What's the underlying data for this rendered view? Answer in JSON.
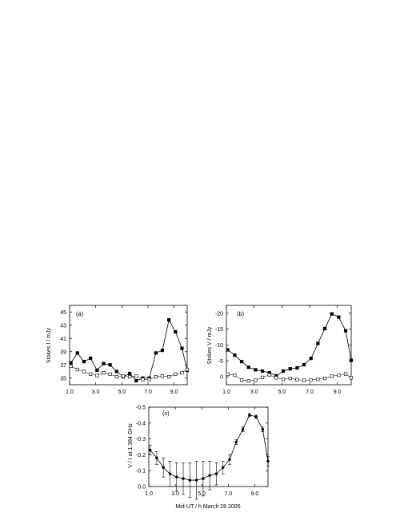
{
  "figure": {
    "bottom_caption": "Mid-UT  / h   March 28   2005"
  },
  "chart_data": [
    {
      "id": "a",
      "type": "line",
      "panel_label": "(a)",
      "ylabel": "Stokes I / mJy",
      "xlabel": "",
      "xlim": [
        1.0,
        10.0
      ],
      "ylim": [
        34,
        46
      ],
      "xticks": [
        "1.0",
        "3.0",
        "5.0",
        "7.0",
        "9.0"
      ],
      "xtick_values": [
        1,
        3,
        5,
        7,
        9
      ],
      "yticks": [
        "35",
        "37",
        "39",
        "41",
        "43",
        "45"
      ],
      "ytick_values": [
        35,
        37,
        39,
        41,
        43,
        45
      ],
      "series": [
        {
          "marker": "filled-square",
          "x": [
            1.1,
            1.6,
            2.1,
            2.6,
            3.1,
            3.6,
            4.1,
            4.6,
            5.1,
            5.6,
            6.1,
            6.6,
            7.1,
            7.6,
            8.1,
            8.6,
            9.1,
            9.6,
            10.0
          ],
          "y": [
            37.3,
            38.8,
            37.5,
            38.0,
            36.2,
            37.2,
            37.0,
            36.0,
            35.2,
            35.7,
            34.6,
            35.0,
            35.0,
            38.8,
            39.2,
            43.8,
            42.0,
            39.5,
            36.2
          ]
        },
        {
          "marker": "open-square",
          "x": [
            1.1,
            1.6,
            2.1,
            2.6,
            3.1,
            3.6,
            4.1,
            4.6,
            5.1,
            5.6,
            6.1,
            6.6,
            7.1,
            7.6,
            8.1,
            8.6,
            9.1,
            9.6,
            10.0
          ],
          "y": [
            36.8,
            36.3,
            36.0,
            35.6,
            35.4,
            35.8,
            35.6,
            35.2,
            35.3,
            35.2,
            35.3,
            34.8,
            34.8,
            35.2,
            35.3,
            35.2,
            35.6,
            35.8,
            36.3
          ]
        }
      ]
    },
    {
      "id": "b",
      "type": "line",
      "panel_label": "(b)",
      "ylabel": "Stokes V / mJy",
      "xlabel": "",
      "xlim": [
        1.0,
        10.0
      ],
      "ylim": [
        2.5,
        -22.5
      ],
      "xticks": [
        "1.0",
        "3.0",
        "5.0",
        "7.0",
        "9.0"
      ],
      "xtick_values": [
        1,
        3,
        5,
        7,
        9
      ],
      "yticks": [
        "-20",
        "-15",
        "-10",
        "-5",
        "0",
        "5"
      ],
      "ytick_values": [
        -20,
        -15,
        -10,
        -5,
        0,
        5
      ],
      "series": [
        {
          "marker": "filled-square",
          "x": [
            1.1,
            1.6,
            2.1,
            2.6,
            3.1,
            3.6,
            4.1,
            4.6,
            5.1,
            5.6,
            6.1,
            6.6,
            7.1,
            7.6,
            8.1,
            8.6,
            9.1,
            9.6,
            10.0
          ],
          "y": [
            -8.5,
            -6.8,
            -4.8,
            -3.0,
            -2.2,
            -1.8,
            -1.3,
            -0.3,
            -1.8,
            -2.5,
            -2.8,
            -3.8,
            -5.8,
            -10.5,
            -15.2,
            -19.8,
            -18.8,
            -14.5,
            -5.2
          ]
        },
        {
          "marker": "open-square",
          "x": [
            1.1,
            1.6,
            2.1,
            2.6,
            3.1,
            3.6,
            4.1,
            4.6,
            5.1,
            5.6,
            6.1,
            6.6,
            7.1,
            7.6,
            8.1,
            8.6,
            9.1,
            9.6,
            10.0
          ],
          "y": [
            -0.8,
            -0.5,
            1.0,
            1.3,
            1.1,
            0.2,
            -0.6,
            0.3,
            0.8,
            0.5,
            0.9,
            1.1,
            1.0,
            0.8,
            0.5,
            -0.2,
            -0.5,
            -0.9,
            0.3
          ]
        }
      ]
    },
    {
      "id": "c",
      "type": "line",
      "panel_label": "(c)",
      "ylabel": "V / I  at 1.384 GHz",
      "xlabel": "Mid-UT  / h   March 28   2005",
      "xlim": [
        1.0,
        10.0
      ],
      "ylim": [
        0.0,
        -0.5
      ],
      "xticks": [
        "1.0",
        "3.0",
        "5.0",
        "7.0",
        "9.0"
      ],
      "xtick_values": [
        1,
        3,
        5,
        7,
        9
      ],
      "yticks": [
        "-0.5",
        "-0.4",
        "-0.3",
        "-0.2",
        "-0.1",
        "0.0"
      ],
      "ytick_values": [
        -0.5,
        -0.4,
        -0.3,
        -0.2,
        -0.1,
        0.0
      ],
      "series": [
        {
          "marker": "filled-circle",
          "x": [
            1.1,
            1.6,
            2.1,
            2.6,
            3.1,
            3.6,
            4.1,
            4.6,
            5.1,
            5.6,
            6.1,
            6.6,
            7.1,
            7.6,
            8.1,
            8.6,
            9.1,
            9.6,
            10.0
          ],
          "y": [
            -0.23,
            -0.18,
            -0.12,
            -0.08,
            -0.06,
            -0.05,
            -0.04,
            -0.04,
            -0.05,
            -0.07,
            -0.08,
            -0.12,
            -0.17,
            -0.28,
            -0.36,
            -0.45,
            -0.44,
            -0.36,
            -0.16
          ],
          "err": [
            0.03,
            0.04,
            0.06,
            0.08,
            0.09,
            0.1,
            0.11,
            0.12,
            0.11,
            0.09,
            0.07,
            0.04,
            0.03,
            0.015,
            0.015,
            0.01,
            0.01,
            0.015,
            0.03
          ]
        }
      ]
    }
  ]
}
